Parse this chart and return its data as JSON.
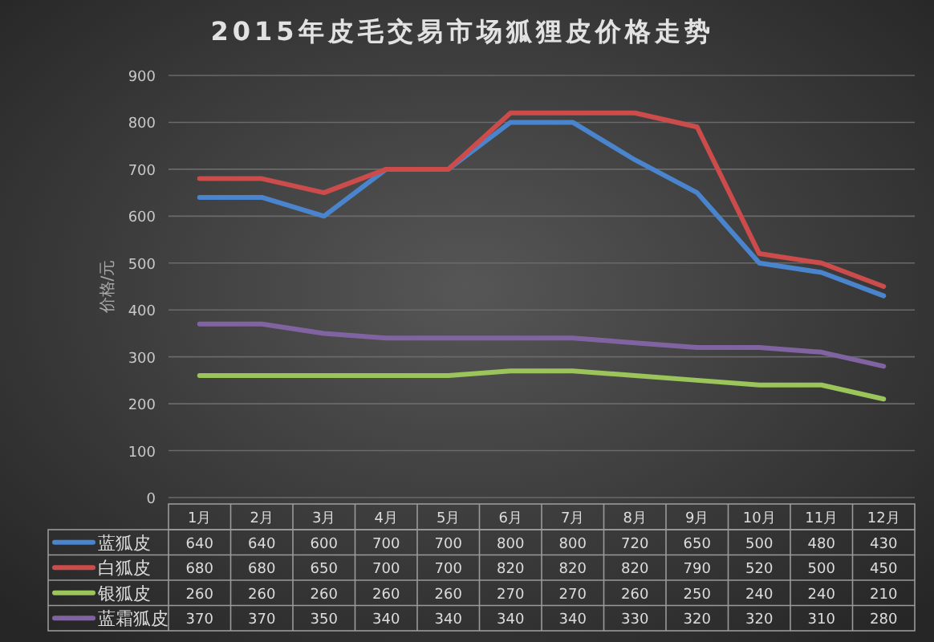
{
  "chart_data": {
    "type": "line",
    "title": "2015年皮毛交易市场狐狸皮价格走势",
    "ylabel": "价格/元",
    "categories": [
      "1月",
      "2月",
      "3月",
      "4月",
      "5月",
      "6月",
      "7月",
      "8月",
      "9月",
      "10月",
      "11月",
      "12月"
    ],
    "series": [
      {
        "name": "蓝狐皮",
        "color": "#4a84cc",
        "values": [
          640,
          640,
          600,
          700,
          700,
          800,
          800,
          720,
          650,
          500,
          480,
          430
        ]
      },
      {
        "name": "白狐皮",
        "color": "#cc4b4b",
        "values": [
          680,
          680,
          650,
          700,
          700,
          820,
          820,
          820,
          790,
          520,
          500,
          450
        ]
      },
      {
        "name": "银狐皮",
        "color": "#9bc45a",
        "values": [
          260,
          260,
          260,
          260,
          260,
          270,
          270,
          260,
          250,
          240,
          240,
          210
        ]
      },
      {
        "name": "蓝霜狐皮",
        "color": "#8064a2",
        "values": [
          370,
          370,
          350,
          340,
          340,
          340,
          340,
          330,
          320,
          320,
          310,
          280
        ]
      }
    ],
    "ylim": [
      0,
      900
    ],
    "yticks": [
      0,
      100,
      200,
      300,
      400,
      500,
      600,
      700,
      800,
      900
    ],
    "grid": "y",
    "legend": "bottom",
    "data_labels": true
  }
}
